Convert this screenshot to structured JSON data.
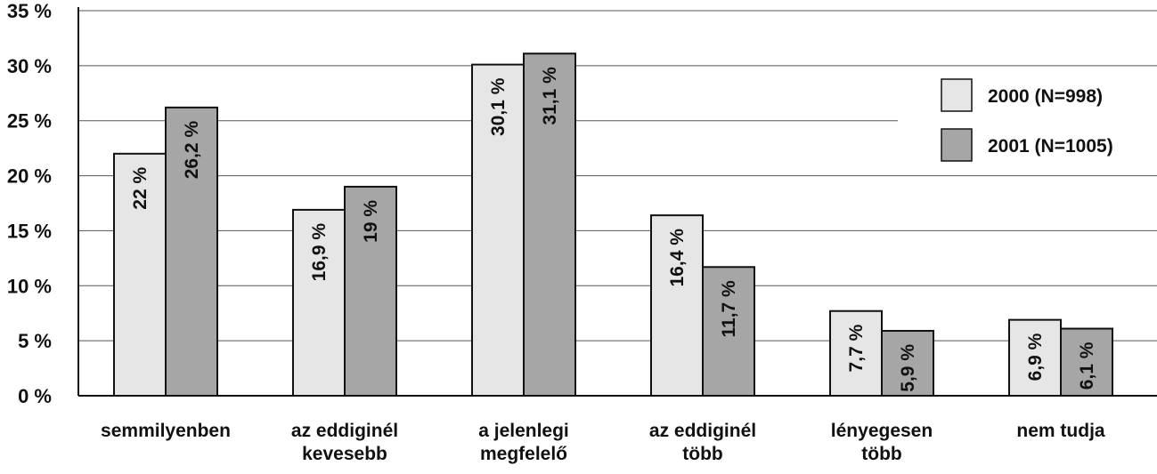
{
  "chart_data": {
    "type": "bar",
    "title": "",
    "xlabel": "",
    "ylabel": "",
    "ylim": [
      0,
      35
    ],
    "yticks": [
      0,
      5,
      10,
      15,
      20,
      25,
      30,
      35
    ],
    "ytick_suffix": " %",
    "grid": true,
    "legend_position": "right",
    "categories": [
      [
        "semmilyenben"
      ],
      [
        "az eddiginél",
        "kevesebb"
      ],
      [
        "a jelenlegi",
        "megfelelő"
      ],
      [
        "az eddiginél",
        "több"
      ],
      [
        "lényegesen",
        "több"
      ],
      [
        "nem tudja"
      ]
    ],
    "series": [
      {
        "name": "2000 (N=998)",
        "color": "#e6e6e6",
        "values": [
          22,
          16.9,
          30.1,
          16.4,
          7.7,
          6.9
        ],
        "labels": [
          "22 %",
          "16,9 %",
          "30,1 %",
          "16,4 %",
          "7,7 %",
          "6,9 %"
        ]
      },
      {
        "name": "2001 (N=1005)",
        "color": "#a6a6a6",
        "values": [
          26.2,
          19,
          31.1,
          11.7,
          5.9,
          6.1
        ],
        "labels": [
          "26,2 %",
          "19 %",
          "31,1 %",
          "11,7 %",
          "5,9 %",
          "6,1 %"
        ]
      }
    ]
  }
}
